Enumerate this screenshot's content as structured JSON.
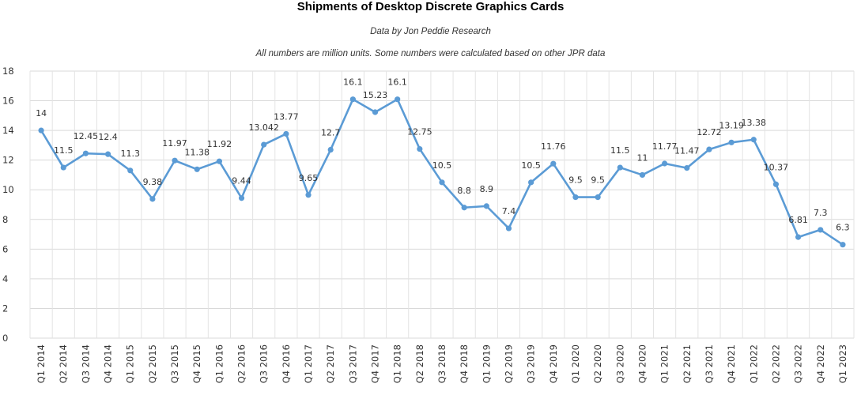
{
  "chart_data": {
    "type": "line",
    "title": "Shipments of Desktop Discrete Graphics Cards",
    "subtitle": "Data by Jon Peddie Research",
    "note": "All numbers are million units. Some numbers were calculated based on other JPR data",
    "xlabel": "",
    "ylabel": "",
    "ylim": [
      0,
      18
    ],
    "yticks": [
      0,
      2,
      4,
      6,
      8,
      10,
      12,
      14,
      16,
      18
    ],
    "grid": true,
    "legend": "none",
    "line_color": "#5b9bd5",
    "categories": [
      "Q1 2014",
      "Q2 2014",
      "Q3 2014",
      "Q4 2014",
      "Q1 2015",
      "Q2 2015",
      "Q3 2015",
      "Q4 2015",
      "Q1 2016",
      "Q2 2016",
      "Q3 2016",
      "Q4 2016",
      "Q1 2017",
      "Q2 2017",
      "Q3 2017",
      "Q4 2017",
      "Q1 2018",
      "Q2 2018",
      "Q3 2018",
      "Q4 2018",
      "Q1 2019",
      "Q2 2019",
      "Q3 2019",
      "Q4 2019",
      "Q1 2020",
      "Q2 2020",
      "Q3 2020",
      "Q4 2020",
      "Q1 2021",
      "Q2 2021",
      "Q3 2021",
      "Q4 2021",
      "Q1 2022",
      "Q2 2022",
      "Q3 2022",
      "Q4 2022",
      "Q1 2023"
    ],
    "values": [
      14,
      11.5,
      12.45,
      12.4,
      11.3,
      9.38,
      11.97,
      11.38,
      11.92,
      9.44,
      13.042,
      13.77,
      9.65,
      12.7,
      16.1,
      15.23,
      16.1,
      12.75,
      10.5,
      8.8,
      8.9,
      7.4,
      10.5,
      11.76,
      9.5,
      9.5,
      11.5,
      11,
      11.77,
      11.47,
      12.72,
      13.19,
      13.38,
      10.37,
      6.81,
      7.3,
      6.3
    ],
    "data_labels": [
      "14",
      "11.5",
      "12.45",
      "12.4",
      "11.3",
      "9.38",
      "11.97",
      "11.38",
      "11.92",
      "9.44",
      "13.042",
      "13.77",
      "9.65",
      "12.7",
      "16.1",
      "15.23",
      "16.1",
      "12.75",
      "10.5",
      "8.8",
      "8.9",
      "7.4",
      "10.5",
      "11.76",
      "9.5",
      "9.5",
      "11.5",
      "11",
      "11.77",
      "11.47",
      "12.72",
      "13.19",
      "13.38",
      "10.37",
      "6.81",
      "7.3",
      "6.3"
    ]
  }
}
